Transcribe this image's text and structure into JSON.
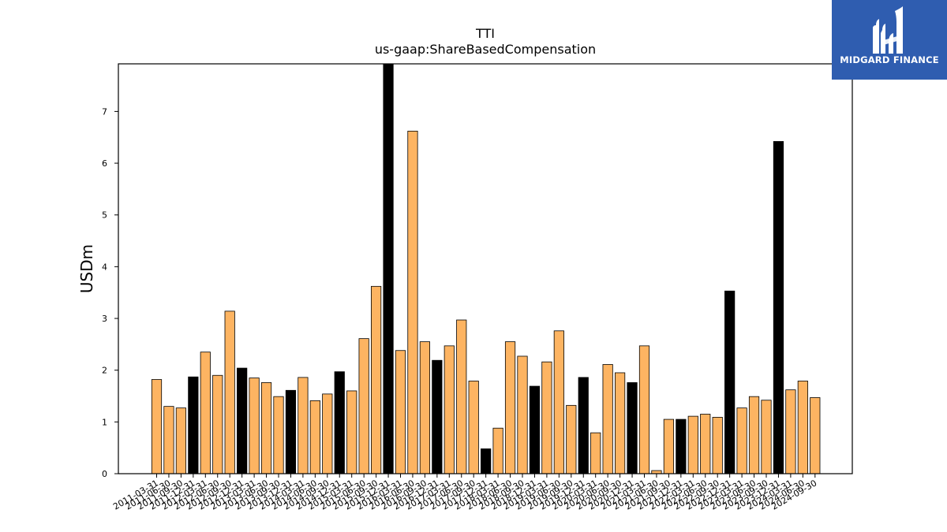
{
  "chart_data": {
    "type": "bar",
    "title": "TTI",
    "subtitle": "us-gaap:ShareBasedCompensation",
    "ylabel": "USDm",
    "xlabel": "",
    "ylim": [
      0,
      7.92
    ],
    "yticks": [
      0,
      1,
      2,
      3,
      4,
      5,
      6,
      7
    ],
    "grid": false,
    "colors": {
      "quarterly": "#fdb462",
      "annual": "#000000",
      "edge": "#000000"
    },
    "categories": [
      "2011-03-31",
      "2011-06-30",
      "2011-09-30",
      "2011-12-31",
      "2012-03-31",
      "2012-06-30",
      "2012-09-30",
      "2012-12-31",
      "2013-03-31",
      "2013-06-30",
      "2013-09-30",
      "2013-12-31",
      "2014-03-31",
      "2014-06-30",
      "2014-09-30",
      "2014-12-31",
      "2015-03-31",
      "2015-06-30",
      "2015-09-30",
      "2015-12-31",
      "2016-03-31",
      "2016-06-30",
      "2016-09-30",
      "2016-12-31",
      "2017-03-31",
      "2017-06-30",
      "2017-09-30",
      "2017-12-31",
      "2018-03-31",
      "2018-06-30",
      "2018-09-30",
      "2018-12-31",
      "2019-03-31",
      "2019-06-30",
      "2019-09-30",
      "2019-12-31",
      "2020-03-31",
      "2020-06-30",
      "2020-09-30",
      "2020-12-31",
      "2021-03-31",
      "2021-06-30",
      "2021-09-30",
      "2021-12-31",
      "2022-03-31",
      "2022-06-30",
      "2022-09-30",
      "2022-12-31",
      "2023-03-31",
      "2023-06-30",
      "2023-09-30",
      "2023-12-31",
      "2024-03-31",
      "2024-06-30",
      "2024-09-30"
    ],
    "values": [
      1.82,
      1.3,
      1.27,
      1.87,
      2.35,
      1.9,
      3.14,
      2.04,
      1.85,
      1.76,
      1.49,
      1.61,
      1.86,
      1.41,
      1.54,
      1.97,
      1.6,
      2.61,
      3.62,
      7.92,
      2.38,
      6.62,
      2.55,
      2.19,
      2.47,
      2.97,
      1.79,
      0.48,
      0.88,
      2.55,
      2.27,
      1.69,
      2.16,
      2.76,
      1.32,
      1.86,
      0.79,
      2.11,
      1.95,
      1.76,
      2.47,
      0.06,
      1.05,
      1.05,
      1.11,
      1.15,
      1.09,
      3.53,
      1.27,
      1.49,
      1.42,
      6.42,
      1.62,
      1.79,
      1.47
    ],
    "annual_flags": [
      false,
      false,
      false,
      true,
      false,
      false,
      false,
      true,
      false,
      false,
      false,
      true,
      false,
      false,
      false,
      true,
      false,
      false,
      false,
      true,
      false,
      false,
      false,
      true,
      false,
      false,
      false,
      true,
      false,
      false,
      false,
      true,
      false,
      false,
      false,
      true,
      false,
      false,
      false,
      true,
      false,
      false,
      false,
      true,
      false,
      false,
      false,
      true,
      false,
      false,
      false,
      true,
      false,
      false,
      false
    ]
  },
  "logo": {
    "text": "MIDGARD FINANCE"
  }
}
